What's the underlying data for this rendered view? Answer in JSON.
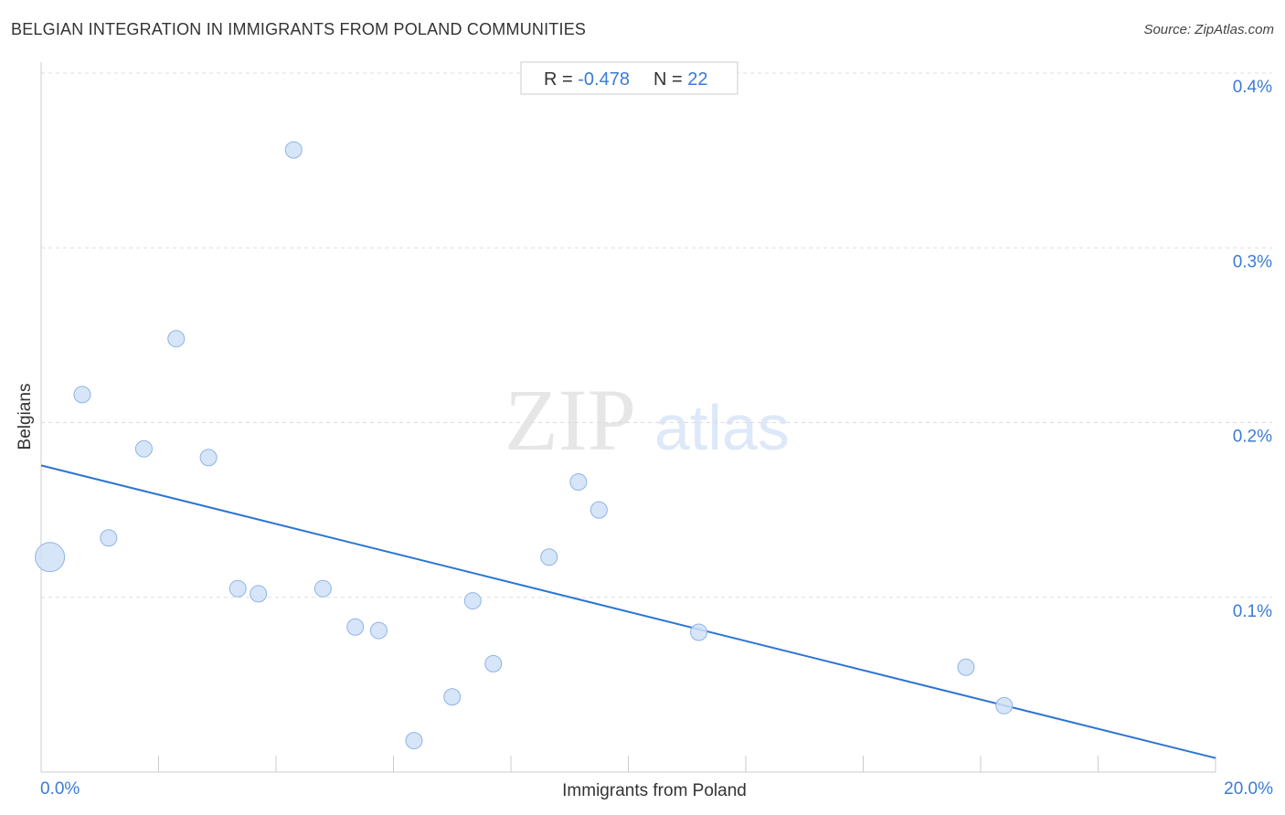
{
  "title": "BELGIAN INTEGRATION IN IMMIGRANTS FROM POLAND COMMUNITIES",
  "source": "Source: ZipAtlas.com",
  "watermark": {
    "zip": "ZIP",
    "atlas": "atlas"
  },
  "stats": {
    "r_label": "R = ",
    "r_value": "-0.478",
    "n_label": "N = ",
    "n_value": "22"
  },
  "colors": {
    "accent": "#3a7bd5",
    "point_fill": "#cfe0f7",
    "point_stroke": "#8fb3e6",
    "trend": "#2f74d0"
  },
  "chart_data": {
    "type": "scatter",
    "title": "BELGIAN INTEGRATION IN IMMIGRANTS FROM POLAND COMMUNITIES",
    "xlabel": "Immigrants from Poland",
    "ylabel": "Belgians",
    "xlim": [
      0,
      20
    ],
    "ylim": [
      0,
      0.4
    ],
    "x_tick_labels": [
      "0.0%",
      "20.0%"
    ],
    "y_ticks": [
      0.1,
      0.2,
      0.3,
      0.4
    ],
    "y_tick_labels": [
      "0.1%",
      "0.2%",
      "0.3%",
      "0.4%"
    ],
    "grid": true,
    "points": [
      {
        "x": 0.15,
        "y": 0.123,
        "size": "large"
      },
      {
        "x": 0.7,
        "y": 0.216
      },
      {
        "x": 1.15,
        "y": 0.134
      },
      {
        "x": 1.75,
        "y": 0.185
      },
      {
        "x": 2.3,
        "y": 0.248
      },
      {
        "x": 2.85,
        "y": 0.18
      },
      {
        "x": 3.35,
        "y": 0.105
      },
      {
        "x": 3.7,
        "y": 0.102
      },
      {
        "x": 4.3,
        "y": 0.356
      },
      {
        "x": 4.8,
        "y": 0.105
      },
      {
        "x": 5.35,
        "y": 0.083
      },
      {
        "x": 5.75,
        "y": 0.081
      },
      {
        "x": 6.35,
        "y": 0.018
      },
      {
        "x": 7.0,
        "y": 0.043
      },
      {
        "x": 7.35,
        "y": 0.098
      },
      {
        "x": 7.7,
        "y": 0.062
      },
      {
        "x": 8.65,
        "y": 0.123
      },
      {
        "x": 9.15,
        "y": 0.166
      },
      {
        "x": 9.5,
        "y": 0.15
      },
      {
        "x": 11.2,
        "y": 0.08
      },
      {
        "x": 15.75,
        "y": 0.06
      },
      {
        "x": 16.4,
        "y": 0.038
      }
    ],
    "trendline": {
      "x": [
        0,
        20
      ],
      "y": [
        0.1755,
        0.008
      ]
    }
  }
}
